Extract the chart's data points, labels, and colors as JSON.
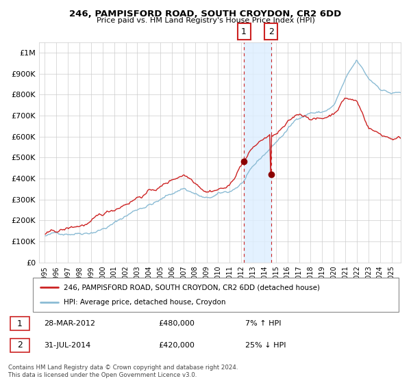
{
  "title": "246, PAMPISFORD ROAD, SOUTH CROYDON, CR2 6DD",
  "subtitle": "Price paid vs. HM Land Registry's House Price Index (HPI)",
  "legend_line1": "246, PAMPISFORD ROAD, SOUTH CROYDON, CR2 6DD (detached house)",
  "legend_line2": "HPI: Average price, detached house, Croydon",
  "transaction1_date": "28-MAR-2012",
  "transaction1_price": "£480,000",
  "transaction1_hpi": "7% ↑ HPI",
  "transaction2_date": "31-JUL-2014",
  "transaction2_price": "£420,000",
  "transaction2_hpi": "25% ↓ HPI",
  "footer": "Contains HM Land Registry data © Crown copyright and database right 2024.\nThis data is licensed under the Open Government Licence v3.0.",
  "hpi_color": "#8abbd4",
  "price_color": "#cc2222",
  "marker_color": "#8b0000",
  "annotation_box_color": "#cc2222",
  "shaded_region_color": "#ddeeff",
  "transaction1_year": 2012.23,
  "transaction2_year": 2014.58,
  "transaction1_value": 480000,
  "transaction2_value": 420000,
  "ylim_max": 1050000,
  "ylim_min": 0,
  "ytick_values": [
    0,
    100000,
    200000,
    300000,
    400000,
    500000,
    600000,
    700000,
    800000,
    900000,
    1000000
  ],
  "ytick_labels": [
    "£0",
    "£100K",
    "£200K",
    "£300K",
    "£400K",
    "£500K",
    "£600K",
    "£700K",
    "£800K",
    "£900K",
    "£1M"
  ],
  "xmin": 1994.5,
  "xmax": 2025.8,
  "background_color": "#ffffff",
  "grid_color": "#cccccc"
}
